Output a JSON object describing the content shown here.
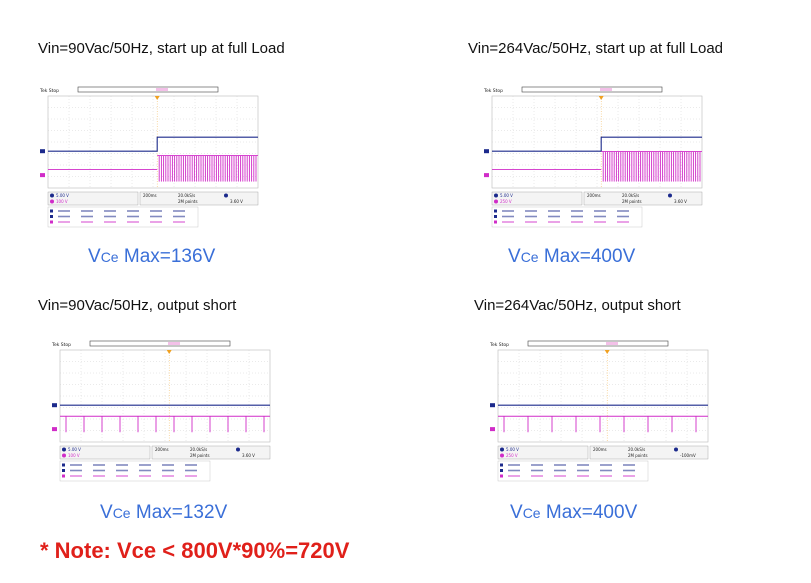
{
  "panels": [
    {
      "title": "Vin=90Vac/50Hz, start up at full Load",
      "vce_prefix": "V",
      "vce_sub": "Ce",
      "vce_value": " Max=136V",
      "scope": {
        "brand": "Tek",
        "mode": "Stop",
        "ch1": "5.00 V",
        "ch2": "100 V",
        "timebase": "200ms",
        "rate": "20.0kS/s",
        "points": "2M points",
        "trigger": "3.60 V"
      }
    },
    {
      "title": "Vin=264Vac/50Hz, start up at full Load",
      "vce_prefix": "V",
      "vce_sub": "Ce",
      "vce_value": " Max=400V",
      "scope": {
        "brand": "Tek",
        "mode": "Stop",
        "ch1": "5.00 V",
        "ch2": "250 V",
        "timebase": "200ms",
        "rate": "20.0kS/s",
        "points": "2M points",
        "trigger": "3.60 V"
      }
    },
    {
      "title": "Vin=90Vac/50Hz, output short",
      "vce_prefix": "V",
      "vce_sub": "Ce",
      "vce_value": " Max=132V",
      "scope": {
        "brand": "Tek",
        "mode": "Stop",
        "ch1": "5.00 V",
        "ch2": "100 V",
        "timebase": "200ms",
        "rate": "20.0kS/s",
        "points": "2M points",
        "trigger": "3.60 V"
      }
    },
    {
      "title": "Vin=264Vac/50Hz, output short",
      "vce_prefix": "V",
      "vce_sub": "Ce",
      "vce_value": " Max=400V",
      "scope": {
        "brand": "Tek",
        "mode": "Stop",
        "ch1": "5.00 V",
        "ch2": "250 V",
        "timebase": "200ms",
        "rate": "20.0kS/s",
        "points": "2M points",
        "trigger": "-100mV"
      }
    }
  ],
  "note": "* Note: Vce < 800V*90%=720V",
  "colors": {
    "ch1": "#1c2a8c",
    "ch2": "#d02cc8",
    "trigger": "#f0a020",
    "label": "#3a6fd8",
    "note": "#e0201a"
  }
}
